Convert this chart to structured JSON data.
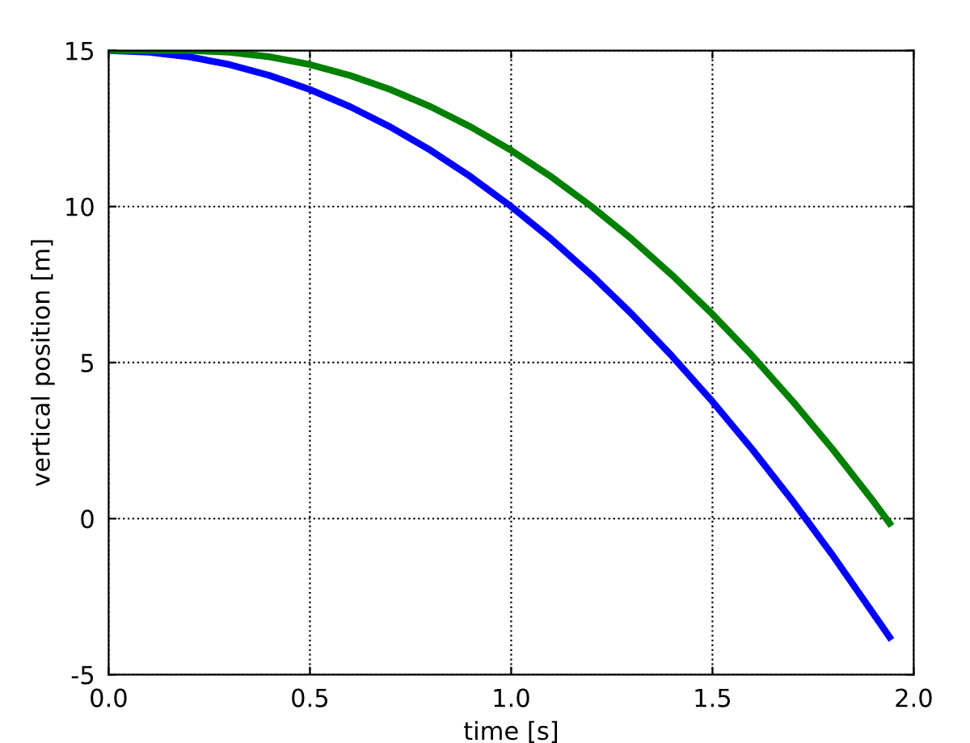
{
  "chart_data": {
    "type": "line",
    "xlabel": "time [s]",
    "ylabel": "vertical position [m]",
    "x": [
      0,
      0.1,
      0.2,
      0.3,
      0.4,
      0.5,
      0.6,
      0.7,
      0.8,
      0.9,
      1.0,
      1.1,
      1.2,
      1.3,
      1.4,
      1.5,
      1.6,
      1.7,
      1.8,
      1.9,
      1.94
    ],
    "series": [
      {
        "color": "#0000ff",
        "values": [
          15,
          14.95,
          14.8,
          14.55,
          14.2,
          13.75,
          13.2,
          12.55,
          11.8,
          10.95,
          10,
          8.95,
          7.8,
          6.55,
          5.2,
          3.75,
          2.2,
          0.55,
          -1.2,
          -3.05,
          -3.8
        ]
      },
      {
        "color": "#008000",
        "values": [
          15,
          15,
          15,
          14.95,
          14.8,
          14.55,
          14.2,
          13.75,
          13.2,
          12.55,
          11.8,
          10.95,
          10,
          8.95,
          7.8,
          6.55,
          5.2,
          3.75,
          2.2,
          0.55,
          -0.15
        ]
      }
    ],
    "xlim": [
      0,
      2
    ],
    "ylim": [
      -5,
      15
    ],
    "xticks": [
      {
        "value": 0,
        "label": "0.0"
      },
      0.5,
      {
        "value": 1,
        "label": "1.0"
      },
      1.5,
      {
        "value": 2,
        "label": "2.0"
      }
    ],
    "yticks": [
      -5,
      0,
      5,
      10,
      15
    ],
    "grid": true,
    "line_style": "solid"
  }
}
